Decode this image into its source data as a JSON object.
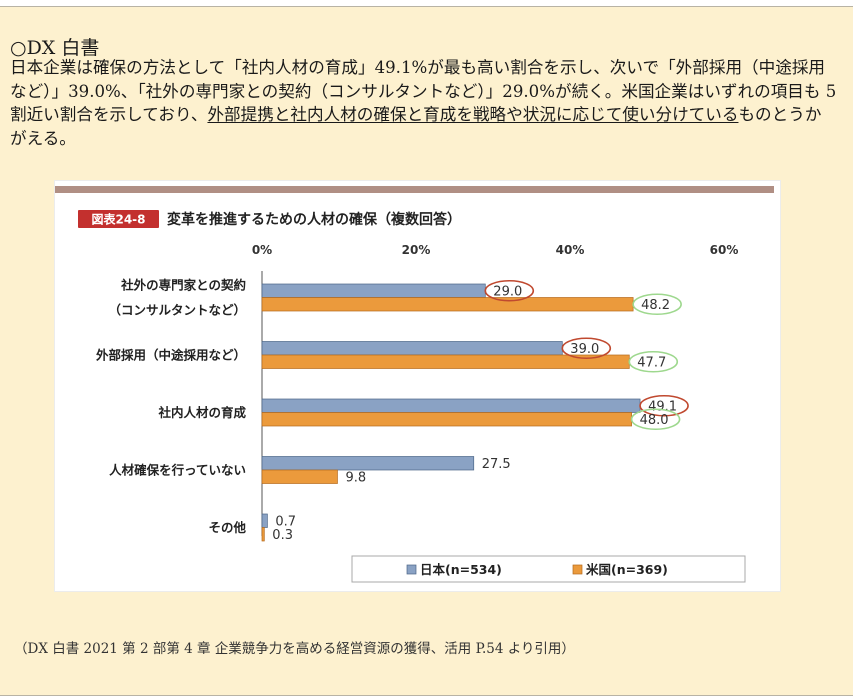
{
  "section": {
    "heading": "○DX 白書",
    "paragraph": {
      "lead": "日本企業は確保の方法として「社内人材の育成」49.1%が最も高い割合を示し、次いで「外部採用（中途採用など）」39.0%、「社外の専門家との契約（コンサルタントなど）」29.0%が続く。米国企業はいずれの項目も 5 割近い割合を示しており、",
      "underlined": "外部提携と社内人材の確保と育成を戦略や状況に応じて使い分けている",
      "tail": "ものとうかがえる。"
    },
    "citation": "（DX 白書 2021 第 2 部第 4 章 企業競争力を高める経営資源の獲得、活用 P.54 より引用）"
  },
  "colors": {
    "japan": "#8aa2c4",
    "usa": "#eb9a3c",
    "highlight_japan": "#c0492f",
    "highlight_usa": "#9ed88e",
    "header_bar": "#b08f84",
    "badge": "#c3302e"
  },
  "chart_data": {
    "type": "bar",
    "orientation": "horizontal",
    "badge": "図表24-8",
    "title": "変革を推進するための人材の確保（複数回答）",
    "categories": [
      [
        "社外の専門家との契約",
        "（コンサルタントなど）"
      ],
      [
        "外部採用（中途採用など）"
      ],
      [
        "社内人材の育成"
      ],
      [
        "人材確保を行っていない"
      ],
      [
        "その他"
      ]
    ],
    "series": [
      {
        "name": "日本(n=534)",
        "values": [
          29.0,
          39.0,
          49.1,
          27.5,
          0.7
        ]
      },
      {
        "name": "米国(n=369)",
        "values": [
          48.2,
          47.7,
          48.0,
          9.8,
          0.3
        ]
      }
    ],
    "value_labels": [
      [
        "29.0",
        "39.0",
        "49.1",
        "27.5",
        "0.7"
      ],
      [
        "48.2",
        "47.7",
        "48.0",
        "9.8",
        "0.3"
      ]
    ],
    "circled": [
      [
        true,
        true,
        true,
        false,
        false
      ],
      [
        true,
        true,
        true,
        false,
        false
      ]
    ],
    "xlim": [
      0,
      60
    ],
    "ticks": [
      0,
      20,
      40,
      60
    ],
    "tick_labels": [
      "0%",
      "20%",
      "40%",
      "60%"
    ],
    "grid": false,
    "legend_position": "bottom-right"
  }
}
